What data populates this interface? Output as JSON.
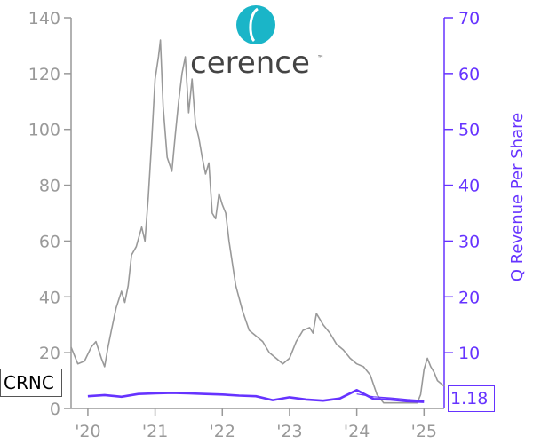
{
  "ticker": "CRNC",
  "last_value": "1.18",
  "logo": {
    "text": "cerence",
    "mark": "™",
    "icon": "cerence-logo-icon",
    "color": "#1ab5c8"
  },
  "colors": {
    "price": "#999999",
    "revenue": "#6633ff",
    "axis_left": "#999999",
    "axis_right": "#6633ff"
  },
  "chart_data": {
    "type": "line",
    "ylabel_right": "Q Revenue Per Share",
    "x_ticks": [
      "'20",
      "'21",
      "'22",
      "'23",
      "'24",
      "'25"
    ],
    "x_tick_positions": [
      2020.0,
      2021.0,
      2022.0,
      2023.0,
      2024.0,
      2025.0
    ],
    "xlim": [
      2019.75,
      2025.3
    ],
    "ylim_left": [
      0,
      140
    ],
    "y_ticks_left": [
      0,
      20,
      40,
      60,
      80,
      100,
      120,
      140
    ],
    "ylim_right": [
      0,
      70
    ],
    "y_ticks_right": [
      10,
      20,
      30,
      40,
      50,
      60,
      70
    ],
    "grid": false,
    "series": [
      {
        "axis": "left",
        "x": [
          2019.75,
          2019.85,
          2019.95,
          2020.05,
          2020.12,
          2020.2,
          2020.25,
          2020.3,
          2020.35,
          2020.42,
          2020.5,
          2020.55,
          2020.6,
          2020.65,
          2020.72,
          2020.8,
          2020.85,
          2020.9,
          2020.95,
          2021.0,
          2021.05,
          2021.08,
          2021.12,
          2021.18,
          2021.25,
          2021.3,
          2021.35,
          2021.4,
          2021.45,
          2021.5,
          2021.55,
          2021.6,
          2021.65,
          2021.7,
          2021.75,
          2021.8,
          2021.85,
          2021.9,
          2021.95,
          2022.0,
          2022.05,
          2022.1,
          2022.15,
          2022.2,
          2022.3,
          2022.4,
          2022.5,
          2022.6,
          2022.7,
          2022.8,
          2022.9,
          2023.0,
          2023.1,
          2023.2,
          2023.3,
          2023.35,
          2023.4,
          2023.5,
          2023.6,
          2023.7,
          2023.8,
          2023.9,
          2024.0,
          2024.1,
          2024.2,
          2024.3,
          2024.4,
          2024.5,
          2024.6,
          2024.7,
          2024.8,
          2024.9,
          2024.95,
          2025.0,
          2025.05,
          2025.1,
          2025.15,
          2025.2,
          2025.3
        ],
        "values": [
          22,
          16,
          17,
          22,
          24,
          18,
          15,
          22,
          28,
          36,
          42,
          38,
          44,
          55,
          58,
          65,
          60,
          76,
          96,
          118,
          126,
          132,
          108,
          90,
          85,
          98,
          110,
          120,
          126,
          106,
          118,
          102,
          97,
          90,
          84,
          88,
          70,
          68,
          77,
          73,
          70,
          60,
          52,
          44,
          35,
          28,
          26,
          24,
          20,
          18,
          16,
          18,
          24,
          28,
          29,
          27,
          34,
          30,
          27,
          23,
          21,
          18,
          16,
          15,
          12,
          5,
          2,
          2,
          2,
          2,
          2,
          2,
          5,
          14,
          18,
          15,
          13,
          10,
          8
        ]
      },
      {
        "axis": "right",
        "x": [
          2020.0,
          2020.25,
          2020.5,
          2020.75,
          2021.0,
          2021.25,
          2021.5,
          2021.75,
          2022.0,
          2022.25,
          2022.5,
          2022.75,
          2023.0,
          2023.25,
          2023.5,
          2023.75,
          2024.0,
          2024.25,
          2024.5,
          2024.75,
          2025.0
        ],
        "values": [
          2.2,
          2.4,
          2.1,
          2.6,
          2.7,
          2.8,
          2.7,
          2.6,
          2.5,
          2.3,
          2.2,
          1.5,
          2.0,
          1.6,
          1.4,
          1.8,
          3.3,
          1.7,
          1.6,
          1.3,
          1.18
        ]
      },
      {
        "axis": "right",
        "x": [
          2024.0,
          2024.25,
          2024.5,
          2024.75,
          2025.0
        ],
        "values": [
          2.6,
          2.1,
          1.9,
          1.6,
          1.4
        ]
      }
    ]
  }
}
